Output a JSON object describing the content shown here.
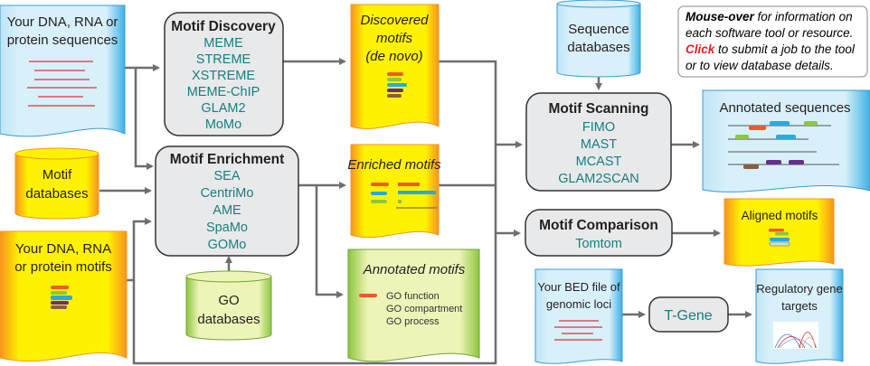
{
  "inputs": {
    "sequences": [
      "Your DNA, RNA or",
      "protein sequences"
    ],
    "motif_databases": [
      "Motif",
      "databases"
    ],
    "motifs": [
      "Your DNA, RNA",
      "or protein motifs"
    ],
    "go_databases": [
      "GO",
      "databases"
    ],
    "sequence_databases": [
      "Sequence",
      "databases"
    ],
    "bed_file": [
      "Your BED file of",
      "genomic loci"
    ]
  },
  "tools": {
    "discovery": {
      "title": "Motif Discovery",
      "items": [
        "MEME",
        "STREME",
        "XSTREME",
        "MEME-ChIP",
        "GLAM2",
        "MoMo"
      ]
    },
    "enrichment": {
      "title": "Motif Enrichment",
      "items": [
        "SEA",
        "CentriMo",
        "AME",
        "SpaMo",
        "GOMo"
      ]
    },
    "scanning": {
      "title": "Motif Scanning",
      "items": [
        "FIMO",
        "MAST",
        "MCAST",
        "GLAM2SCAN"
      ]
    },
    "comparison": {
      "title": "Motif Comparison",
      "items": [
        "Tomtom"
      ]
    },
    "tgene": {
      "label": "T-Gene"
    }
  },
  "outputs": {
    "discovered": [
      "Discovered",
      "motifs",
      "(de novo)"
    ],
    "enriched": "Enriched motifs",
    "annotated_motifs": {
      "title": "Annotated motifs",
      "items": [
        "GO function",
        "GO compartment",
        "GO process"
      ]
    },
    "annotated_sequences": "Annotated sequences",
    "aligned": "Aligned motifs",
    "regulatory": [
      "Regulatory gene",
      "targets"
    ]
  },
  "info": {
    "line1_bold": "Mouse-over",
    "line1_rest": " for information on",
    "line2": "each software tool or resource.",
    "line3_bold": "Click",
    "line3_rest": " to submit a job to the tool",
    "line4": "or to view database details."
  },
  "colors": {
    "tool_text": "#177e80",
    "click": "#ed1c24",
    "doc_blue": "#d4eef9",
    "doc_yellow": "#fff200",
    "doc_green": "#e6efa8"
  }
}
